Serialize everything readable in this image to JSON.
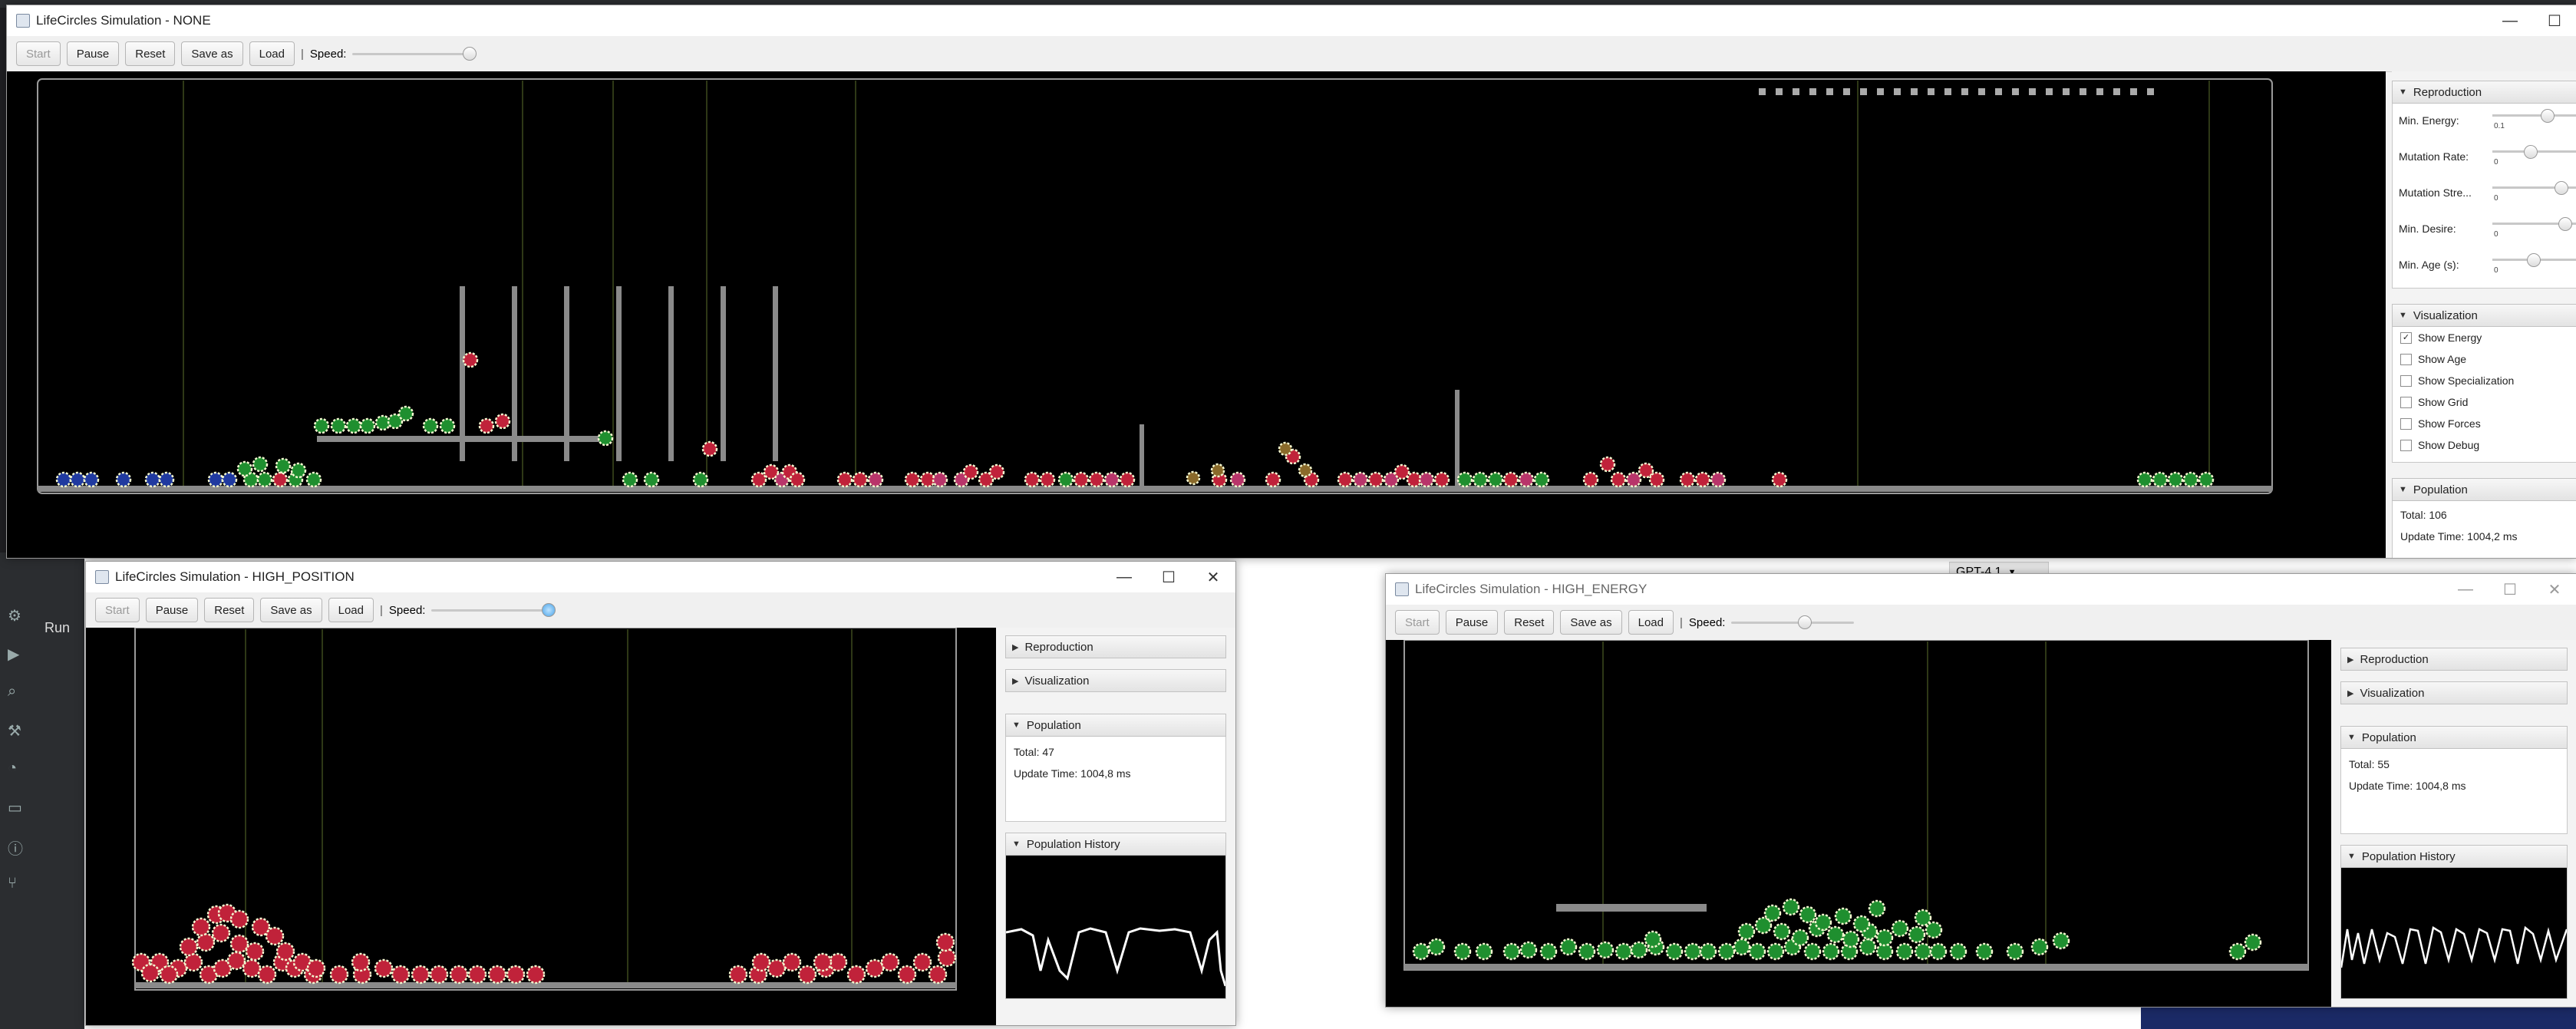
{
  "colors": {
    "organism_good": "#1f8f2f",
    "organism_bad": "#c0223a",
    "obstacle": "#8a8a8a",
    "energy_ring": "#e8f0a0"
  },
  "ide": {
    "run_label": "Run",
    "model_selector": "GPT-4.1"
  },
  "common": {
    "start": "Start",
    "pause": "Pause",
    "reset": "Reset",
    "save_as": "Save as",
    "load": "Load",
    "separator": "|",
    "speed": "Speed:",
    "reproduction": "Reproduction",
    "visualization": "Visualization",
    "population": "Population",
    "population_history": "Population History"
  },
  "main_window": {
    "title": "LifeCircles Simulation - NONE",
    "speed_level": 1.0,
    "reproduction": {
      "params": [
        {
          "label": "Min. Energy:",
          "value": "0.1"
        },
        {
          "label": "Mutation Rate:",
          "value": "0"
        },
        {
          "label": "Mutation Stre...",
          "value": "0"
        },
        {
          "label": "Min. Desire:",
          "value": "0"
        },
        {
          "label": "Min. Age (s):",
          "value": "0"
        }
      ]
    },
    "visualization": {
      "options": [
        {
          "label": "Show Energy",
          "checked": true
        },
        {
          "label": "Show Age",
          "checked": false
        },
        {
          "label": "Show Specialization",
          "checked": false
        },
        {
          "label": "Show Grid",
          "checked": false
        },
        {
          "label": "Show Forces",
          "checked": false
        },
        {
          "label": "Show Debug",
          "checked": false
        }
      ]
    },
    "population": {
      "total": "Total: 106",
      "update_time": "Update Time: 1004,2 ms"
    }
  },
  "high_position_window": {
    "title": "LifeCircles Simulation - HIGH_POSITION",
    "speed_level": 1.0,
    "population": {
      "total": "Total: 47",
      "update_time": "Update Time: 1004,8 ms"
    }
  },
  "high_energy_window": {
    "title": "LifeCircles Simulation - HIGH_ENERGY",
    "speed_level": 0.6,
    "population": {
      "total": "Total: 55",
      "update_time": "Update Time: 1004,8 ms"
    }
  }
}
